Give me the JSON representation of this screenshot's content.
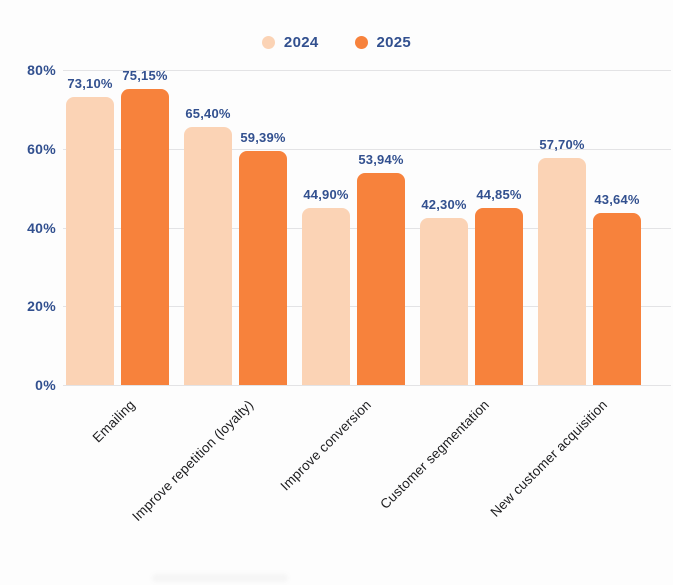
{
  "chart_data": {
    "type": "bar",
    "title": "",
    "xlabel": "",
    "ylabel": "",
    "categories": [
      "Emailing",
      "Improve repetition (loyalty)",
      "Improve conversion",
      "Customer segmentation",
      "New customer acquisition"
    ],
    "series": [
      {
        "name": "2024",
        "color": "#FBD3B5",
        "values": [
          73.1,
          65.4,
          44.9,
          42.3,
          57.7
        ],
        "data_labels": [
          "73,10%",
          "65,40%",
          "44,90%",
          "42,30%",
          "57,70%"
        ]
      },
      {
        "name": "2025",
        "color": "#F7823C",
        "values": [
          75.15,
          59.39,
          53.94,
          44.85,
          43.64
        ],
        "data_labels": [
          "75,15%",
          "59,39%",
          "53,94%",
          "44,85%",
          "43,64%"
        ]
      }
    ],
    "ylim": [
      0,
      80
    ],
    "y_ticks": [
      {
        "value": 0,
        "label": "0%"
      },
      {
        "value": 20,
        "label": "20%"
      },
      {
        "value": 40,
        "label": "40%"
      },
      {
        "value": 60,
        "label": "60%"
      },
      {
        "value": 80,
        "label": "80%"
      }
    ],
    "grid": true,
    "legend_position": "top"
  },
  "colors": {
    "axis_text": "#32508F",
    "value_text": "#32508F",
    "category_text": "#1D1D1F",
    "gridline": "#E3E3E5",
    "background": "#FDFDFD"
  }
}
